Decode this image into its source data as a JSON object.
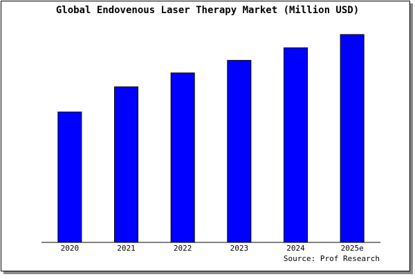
{
  "chart_data": {
    "type": "bar",
    "title": "Global Endovenous Laser Therapy Market (Million USD)",
    "categories": [
      "2020",
      "2021",
      "2022",
      "2023",
      "2024",
      "2025e"
    ],
    "values": [
      187,
      223,
      243,
      261,
      279,
      298
    ],
    "color": "#0000ff",
    "ylim": [
      0,
      300
    ],
    "source": "Source: Prof Research"
  }
}
